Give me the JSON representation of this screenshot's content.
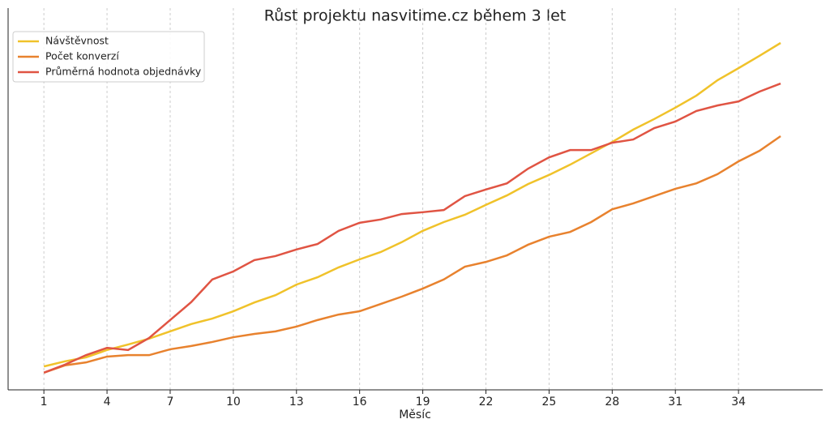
{
  "chart_data": {
    "type": "line",
    "title": "Růst projektu nasvitime.cz během 3 let",
    "xlabel": "Měsíc",
    "x": [
      1,
      2,
      3,
      4,
      5,
      6,
      7,
      8,
      9,
      10,
      11,
      12,
      13,
      14,
      15,
      16,
      17,
      18,
      19,
      20,
      21,
      22,
      23,
      24,
      25,
      26,
      27,
      28,
      29,
      30,
      31,
      32,
      33,
      34,
      35,
      36
    ],
    "xlim": [
      -0.7,
      38
    ],
    "xticks": [
      1,
      4,
      7,
      10,
      13,
      16,
      19,
      22,
      25,
      28,
      31,
      34
    ],
    "ylim": [
      0,
      100
    ],
    "grid": true,
    "legend": "upper left",
    "series": [
      {
        "name": "Návštěvnost",
        "color": "#f0c22a",
        "values": [
          6.4,
          7.8,
          8.9,
          10.9,
          12.4,
          14.0,
          16.0,
          18.0,
          19.5,
          21.5,
          23.9,
          25.9,
          28.8,
          30.8,
          33.5,
          35.7,
          37.7,
          40.4,
          43.5,
          45.9,
          47.9,
          50.6,
          53.2,
          56.3,
          58.8,
          61.6,
          64.7,
          67.8,
          71.2,
          74.1,
          77.2,
          80.5,
          84.7,
          88.0,
          91.4,
          94.9
        ]
      },
      {
        "name": "Počet konverzí",
        "color": "#e8822e",
        "values": [
          4.7,
          6.7,
          7.5,
          9.1,
          9.5,
          9.5,
          11.1,
          12.0,
          13.1,
          14.4,
          15.3,
          16.0,
          17.3,
          19.1,
          20.6,
          21.5,
          23.5,
          25.5,
          27.7,
          30.2,
          33.7,
          35.0,
          36.8,
          39.7,
          41.9,
          43.2,
          45.9,
          49.4,
          51.0,
          53.0,
          55.0,
          56.5,
          59.0,
          62.5,
          65.4,
          69.4
        ]
      },
      {
        "name": "Průměrná hodnota objednávky",
        "color": "#e05443",
        "values": [
          4.7,
          6.9,
          9.5,
          11.5,
          10.9,
          14.2,
          19.1,
          24.0,
          30.2,
          32.4,
          35.5,
          36.6,
          38.4,
          39.9,
          43.5,
          45.7,
          46.6,
          48.1,
          48.6,
          49.2,
          53.0,
          54.8,
          56.5,
          60.5,
          63.6,
          65.6,
          65.6,
          67.6,
          68.5,
          71.6,
          73.4,
          76.3,
          77.8,
          78.9,
          81.6,
          83.8
        ]
      }
    ]
  }
}
